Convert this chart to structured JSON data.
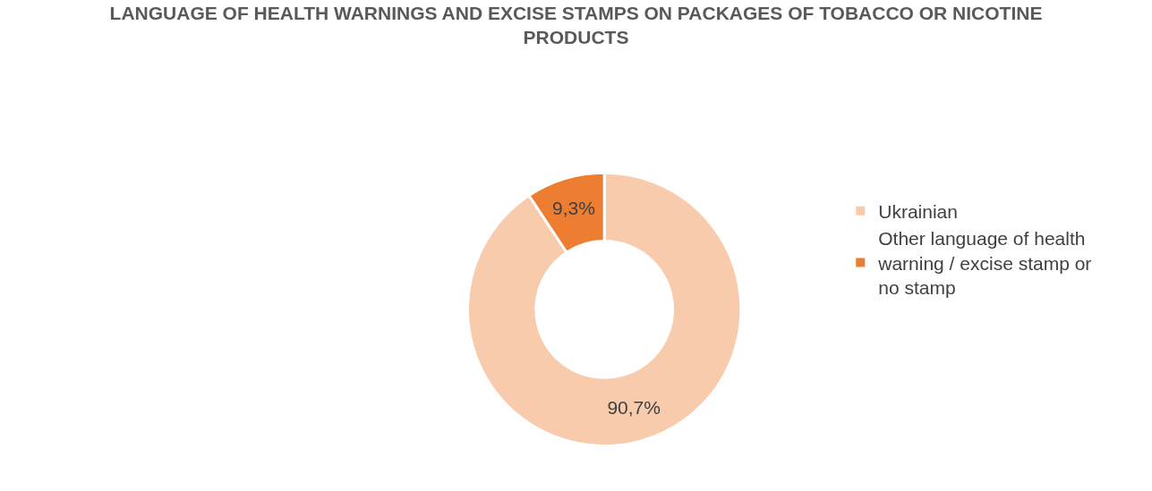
{
  "chart_data": {
    "type": "donut",
    "title": "LANGUAGE OF HEALTH WARNINGS AND EXCISE STAMPS ON PACKAGES OF TOBACCO OR NICOTINE PRODUCTS",
    "categories": [
      "Ukrainian",
      "Other language of health warning / excise stamp or no stamp"
    ],
    "values": [
      90.7,
      9.3
    ],
    "value_labels": [
      "90,7%",
      "9,3%"
    ],
    "colors": [
      "#f8cbad",
      "#ed7d31"
    ],
    "legend": "right"
  }
}
